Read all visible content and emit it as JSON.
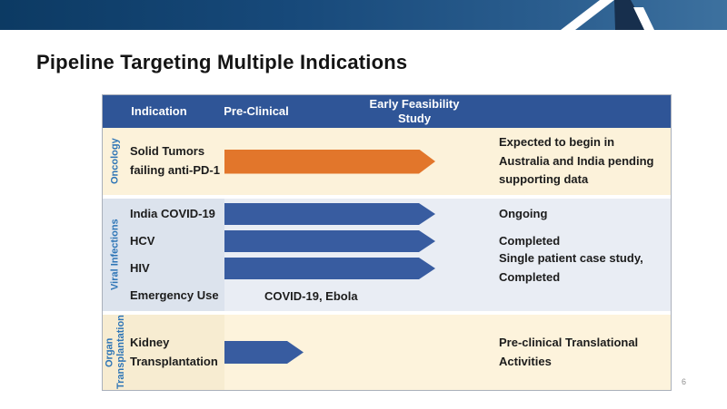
{
  "slide": {
    "title": "Pipeline Targeting Multiple Indications",
    "page_number": "6"
  },
  "colors": {
    "top_bar_start": "#0c3a63",
    "top_bar_end": "#3d719f",
    "logo_navy": "#172f4d",
    "header_bg": "#2f5597",
    "header_text": "#ffffff",
    "oncology_bg": "#fcf2da",
    "viral_bg": "#e9edf4",
    "organ_bg": "#fdf3dc",
    "section_label_text": "#2e75b6",
    "body_text": "#1c1c1c",
    "arrow_orange": "#e2762b",
    "arrow_blue": "#385ca0"
  },
  "table": {
    "columns": [
      "Indication",
      "Pre-Clinical",
      "Early Feasibility\nStudy"
    ],
    "sections": [
      {
        "key": "oncology",
        "label": "Oncology",
        "rows": [
          {
            "indication": "Solid Tumors failing anti-PD-1",
            "arrow": {
              "color": "orange",
              "length": "long"
            },
            "note": "Expected to begin in Australia and India pending supporting data"
          }
        ]
      },
      {
        "key": "viral",
        "label": "Viral Infections",
        "rows": [
          {
            "indication": "India COVID-19",
            "arrow": {
              "color": "blue",
              "length": "long"
            },
            "note": "Ongoing"
          },
          {
            "indication": "HCV",
            "arrow": {
              "color": "blue",
              "length": "long"
            },
            "note": "Completed"
          },
          {
            "indication": "HIV",
            "arrow": {
              "color": "blue",
              "length": "long"
            },
            "note": "Single patient case study, Completed"
          },
          {
            "indication": "Emergency Use",
            "arrow": null,
            "mid_text": "COVID-19, Ebola",
            "note": ""
          }
        ]
      },
      {
        "key": "organ",
        "label": "Organ\nTransplantation",
        "rows": [
          {
            "indication": "Kidney Transplantation",
            "arrow": {
              "color": "blue",
              "length": "short"
            },
            "note": "Pre-clinical Translational Activities"
          }
        ]
      }
    ]
  }
}
